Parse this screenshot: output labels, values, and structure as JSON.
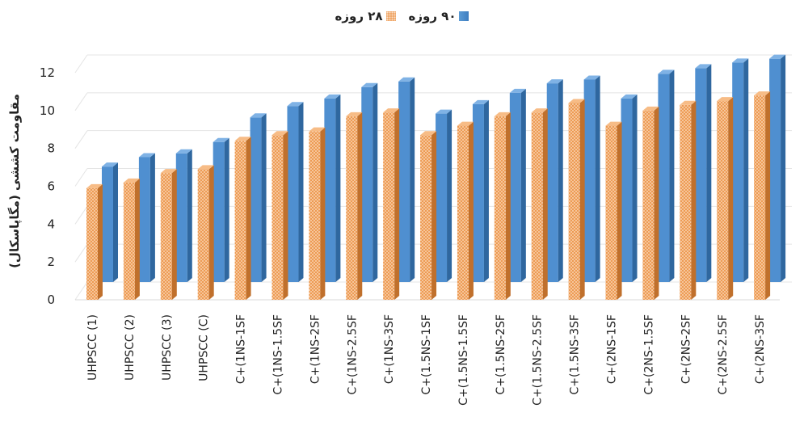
{
  "chart_data": {
    "type": "bar",
    "ylabel": "مقاومت کششی (مگاپاسکال)",
    "xlabel": "",
    "ylim": [
      0,
      12
    ],
    "yticks": [
      "0",
      "2",
      "4",
      "6",
      "8",
      "10",
      "12"
    ],
    "grid": true,
    "legend_position": "top-center",
    "categories": [
      "UHPSCC (1)",
      "UHPSCC (2)",
      "UHPSCC (3)",
      "UHPSCC (C)",
      "C+(1NS-1SF",
      "C+(1NS-1.5SF",
      "C+(1NS-2SF",
      "C+(1NS-2.5SF",
      "C+(1NS-3SF",
      "C+(1.5NS-1SF",
      "C+(1.5NS-1.5SF",
      "C+(1.5NS-2SF",
      "C+(1.5NS-2.5SF",
      "C+(1.5NS-3SF",
      "C+(2NS-1SF",
      "C+(2NS-1.5SF",
      "C+(2NS-2SF",
      "C+(2NS-2.5SF",
      "C+(2NS-3SF"
    ],
    "series": [
      {
        "name": "۲۸ روزه",
        "color": "#ed9b54",
        "values": [
          5.9,
          6.2,
          6.7,
          6.9,
          8.4,
          8.7,
          8.9,
          9.7,
          9.9,
          8.7,
          9.2,
          9.7,
          9.9,
          10.4,
          9.2,
          10.0,
          10.3,
          10.5,
          10.8
        ]
      },
      {
        "name": "۹۰ روزه",
        "color": "#5b9bd5",
        "values": [
          6.1,
          6.6,
          6.8,
          7.4,
          8.7,
          9.3,
          9.7,
          10.3,
          10.6,
          8.9,
          9.4,
          10.0,
          10.5,
          10.7,
          9.7,
          11.0,
          11.3,
          11.6,
          11.8
        ]
      }
    ]
  }
}
